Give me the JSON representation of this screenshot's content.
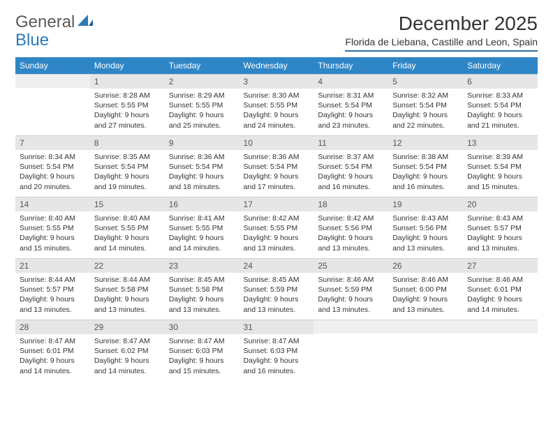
{
  "brand": {
    "word1": "General",
    "word2": "Blue"
  },
  "header": {
    "title": "December 2025",
    "subtitle": "Florida de Liebana, Castille and Leon, Spain"
  },
  "colors": {
    "header_bg": "#2f86c6",
    "header_text": "#ffffff",
    "daynum_bg": "#e6e6e6",
    "rule": "#2a6ea6",
    "brand_blue": "#2a7ab8",
    "text": "#333333"
  },
  "weekdays": [
    "Sunday",
    "Monday",
    "Tuesday",
    "Wednesday",
    "Thursday",
    "Friday",
    "Saturday"
  ],
  "weeks": [
    [
      {
        "day": "",
        "lines": [
          "",
          "",
          "",
          ""
        ]
      },
      {
        "day": "1",
        "lines": [
          "Sunrise: 8:28 AM",
          "Sunset: 5:55 PM",
          "Daylight: 9 hours",
          "and 27 minutes."
        ]
      },
      {
        "day": "2",
        "lines": [
          "Sunrise: 8:29 AM",
          "Sunset: 5:55 PM",
          "Daylight: 9 hours",
          "and 25 minutes."
        ]
      },
      {
        "day": "3",
        "lines": [
          "Sunrise: 8:30 AM",
          "Sunset: 5:55 PM",
          "Daylight: 9 hours",
          "and 24 minutes."
        ]
      },
      {
        "day": "4",
        "lines": [
          "Sunrise: 8:31 AM",
          "Sunset: 5:54 PM",
          "Daylight: 9 hours",
          "and 23 minutes."
        ]
      },
      {
        "day": "5",
        "lines": [
          "Sunrise: 8:32 AM",
          "Sunset: 5:54 PM",
          "Daylight: 9 hours",
          "and 22 minutes."
        ]
      },
      {
        "day": "6",
        "lines": [
          "Sunrise: 8:33 AM",
          "Sunset: 5:54 PM",
          "Daylight: 9 hours",
          "and 21 minutes."
        ]
      }
    ],
    [
      {
        "day": "7",
        "lines": [
          "Sunrise: 8:34 AM",
          "Sunset: 5:54 PM",
          "Daylight: 9 hours",
          "and 20 minutes."
        ]
      },
      {
        "day": "8",
        "lines": [
          "Sunrise: 8:35 AM",
          "Sunset: 5:54 PM",
          "Daylight: 9 hours",
          "and 19 minutes."
        ]
      },
      {
        "day": "9",
        "lines": [
          "Sunrise: 8:36 AM",
          "Sunset: 5:54 PM",
          "Daylight: 9 hours",
          "and 18 minutes."
        ]
      },
      {
        "day": "10",
        "lines": [
          "Sunrise: 8:36 AM",
          "Sunset: 5:54 PM",
          "Daylight: 9 hours",
          "and 17 minutes."
        ]
      },
      {
        "day": "11",
        "lines": [
          "Sunrise: 8:37 AM",
          "Sunset: 5:54 PM",
          "Daylight: 9 hours",
          "and 16 minutes."
        ]
      },
      {
        "day": "12",
        "lines": [
          "Sunrise: 8:38 AM",
          "Sunset: 5:54 PM",
          "Daylight: 9 hours",
          "and 16 minutes."
        ]
      },
      {
        "day": "13",
        "lines": [
          "Sunrise: 8:39 AM",
          "Sunset: 5:54 PM",
          "Daylight: 9 hours",
          "and 15 minutes."
        ]
      }
    ],
    [
      {
        "day": "14",
        "lines": [
          "Sunrise: 8:40 AM",
          "Sunset: 5:55 PM",
          "Daylight: 9 hours",
          "and 15 minutes."
        ]
      },
      {
        "day": "15",
        "lines": [
          "Sunrise: 8:40 AM",
          "Sunset: 5:55 PM",
          "Daylight: 9 hours",
          "and 14 minutes."
        ]
      },
      {
        "day": "16",
        "lines": [
          "Sunrise: 8:41 AM",
          "Sunset: 5:55 PM",
          "Daylight: 9 hours",
          "and 14 minutes."
        ]
      },
      {
        "day": "17",
        "lines": [
          "Sunrise: 8:42 AM",
          "Sunset: 5:55 PM",
          "Daylight: 9 hours",
          "and 13 minutes."
        ]
      },
      {
        "day": "18",
        "lines": [
          "Sunrise: 8:42 AM",
          "Sunset: 5:56 PM",
          "Daylight: 9 hours",
          "and 13 minutes."
        ]
      },
      {
        "day": "19",
        "lines": [
          "Sunrise: 8:43 AM",
          "Sunset: 5:56 PM",
          "Daylight: 9 hours",
          "and 13 minutes."
        ]
      },
      {
        "day": "20",
        "lines": [
          "Sunrise: 8:43 AM",
          "Sunset: 5:57 PM",
          "Daylight: 9 hours",
          "and 13 minutes."
        ]
      }
    ],
    [
      {
        "day": "21",
        "lines": [
          "Sunrise: 8:44 AM",
          "Sunset: 5:57 PM",
          "Daylight: 9 hours",
          "and 13 minutes."
        ]
      },
      {
        "day": "22",
        "lines": [
          "Sunrise: 8:44 AM",
          "Sunset: 5:58 PM",
          "Daylight: 9 hours",
          "and 13 minutes."
        ]
      },
      {
        "day": "23",
        "lines": [
          "Sunrise: 8:45 AM",
          "Sunset: 5:58 PM",
          "Daylight: 9 hours",
          "and 13 minutes."
        ]
      },
      {
        "day": "24",
        "lines": [
          "Sunrise: 8:45 AM",
          "Sunset: 5:59 PM",
          "Daylight: 9 hours",
          "and 13 minutes."
        ]
      },
      {
        "day": "25",
        "lines": [
          "Sunrise: 8:46 AM",
          "Sunset: 5:59 PM",
          "Daylight: 9 hours",
          "and 13 minutes."
        ]
      },
      {
        "day": "26",
        "lines": [
          "Sunrise: 8:46 AM",
          "Sunset: 6:00 PM",
          "Daylight: 9 hours",
          "and 13 minutes."
        ]
      },
      {
        "day": "27",
        "lines": [
          "Sunrise: 8:46 AM",
          "Sunset: 6:01 PM",
          "Daylight: 9 hours",
          "and 14 minutes."
        ]
      }
    ],
    [
      {
        "day": "28",
        "lines": [
          "Sunrise: 8:47 AM",
          "Sunset: 6:01 PM",
          "Daylight: 9 hours",
          "and 14 minutes."
        ]
      },
      {
        "day": "29",
        "lines": [
          "Sunrise: 8:47 AM",
          "Sunset: 6:02 PM",
          "Daylight: 9 hours",
          "and 14 minutes."
        ]
      },
      {
        "day": "30",
        "lines": [
          "Sunrise: 8:47 AM",
          "Sunset: 6:03 PM",
          "Daylight: 9 hours",
          "and 15 minutes."
        ]
      },
      {
        "day": "31",
        "lines": [
          "Sunrise: 8:47 AM",
          "Sunset: 6:03 PM",
          "Daylight: 9 hours",
          "and 16 minutes."
        ]
      },
      {
        "day": "",
        "lines": [
          "",
          "",
          "",
          ""
        ]
      },
      {
        "day": "",
        "lines": [
          "",
          "",
          "",
          ""
        ]
      },
      {
        "day": "",
        "lines": [
          "",
          "",
          "",
          ""
        ]
      }
    ]
  ]
}
